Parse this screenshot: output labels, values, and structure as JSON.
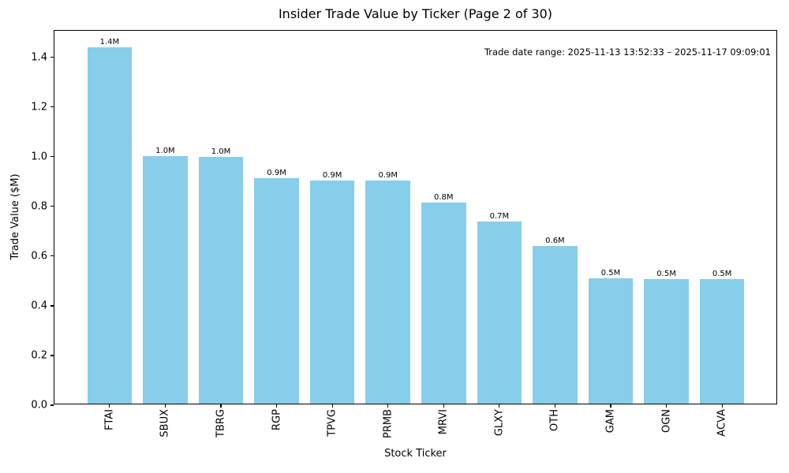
{
  "chart_data": {
    "type": "bar",
    "title": "Insider Trade Value by Ticker (Page 2 of 30)",
    "xlabel": "Stock Ticker",
    "ylabel": "Trade Value ($M)",
    "annotation": "Trade date range: 2025-11-13 13:52:33 – 2025-11-17 09:09:01",
    "categories": [
      "FTAI",
      "SBUX",
      "TBRG",
      "RGP",
      "TPVG",
      "PRMB",
      "MRVI",
      "GLXY",
      "OTH",
      "GAM",
      "OGN",
      "ACVA"
    ],
    "values": [
      1.435,
      0.996,
      0.992,
      0.908,
      0.897,
      0.897,
      0.81,
      0.734,
      0.636,
      0.505,
      0.5,
      0.502
    ],
    "bar_labels": [
      "1.4M",
      "1.0M",
      "1.0M",
      "0.9M",
      "0.9M",
      "0.9M",
      "0.8M",
      "0.7M",
      "0.6M",
      "0.5M",
      "0.5M",
      "0.5M"
    ],
    "yticks": [
      0.0,
      0.2,
      0.4,
      0.6,
      0.8,
      1.0,
      1.2,
      1.4
    ],
    "ytick_labels": [
      "0.0",
      "0.2",
      "0.4",
      "0.6",
      "0.8",
      "1.0",
      "1.2",
      "1.4"
    ],
    "ylim": [
      0,
      1.507
    ],
    "bar_color": "#87CEEB",
    "text_color": "#000000",
    "grid": "off",
    "legend": "none"
  }
}
